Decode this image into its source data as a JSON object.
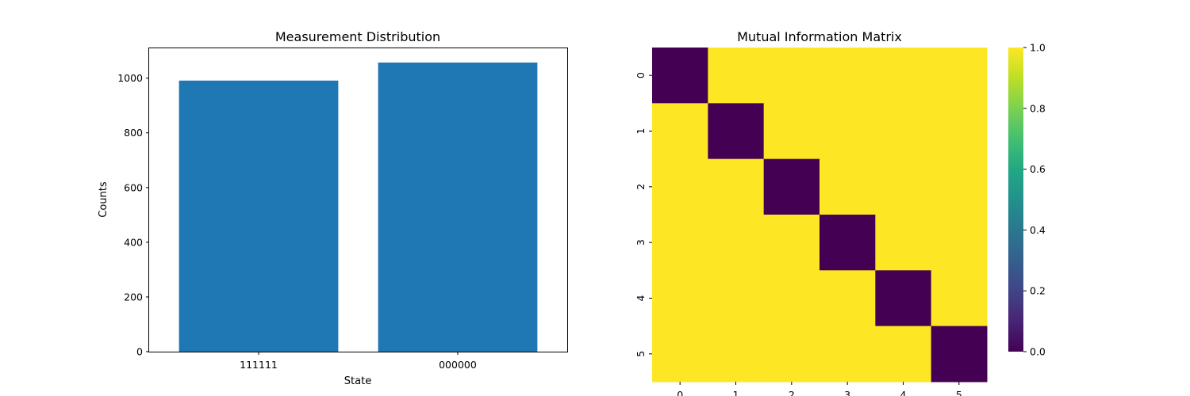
{
  "chart_data": [
    {
      "type": "bar",
      "title": "Measurement Distribution",
      "xlabel": "State",
      "ylabel": "Counts",
      "categories": [
        "111111",
        "000000"
      ],
      "values": [
        991,
        1057
      ],
      "ylim": [
        0,
        1109
      ],
      "yticks": [
        0,
        200,
        400,
        600,
        800,
        1000
      ],
      "bar_color": "#1f77b4",
      "grid": false
    },
    {
      "type": "heatmap",
      "title": "Mutual Information Matrix",
      "x_labels": [
        "0",
        "1",
        "2",
        "3",
        "4",
        "5"
      ],
      "y_labels": [
        "0",
        "1",
        "2",
        "3",
        "4",
        "5"
      ],
      "values": [
        [
          0,
          1,
          1,
          1,
          1,
          1
        ],
        [
          1,
          0,
          1,
          1,
          1,
          1
        ],
        [
          1,
          1,
          0,
          1,
          1,
          1
        ],
        [
          1,
          1,
          1,
          0,
          1,
          1
        ],
        [
          1,
          1,
          1,
          1,
          0,
          1
        ],
        [
          1,
          1,
          1,
          1,
          1,
          0
        ]
      ],
      "colormap": "viridis",
      "colorbar_range": [
        0,
        1
      ],
      "colorbar_ticks": [
        "0.0",
        "0.2",
        "0.4",
        "0.6",
        "0.8",
        "1.0"
      ]
    }
  ]
}
